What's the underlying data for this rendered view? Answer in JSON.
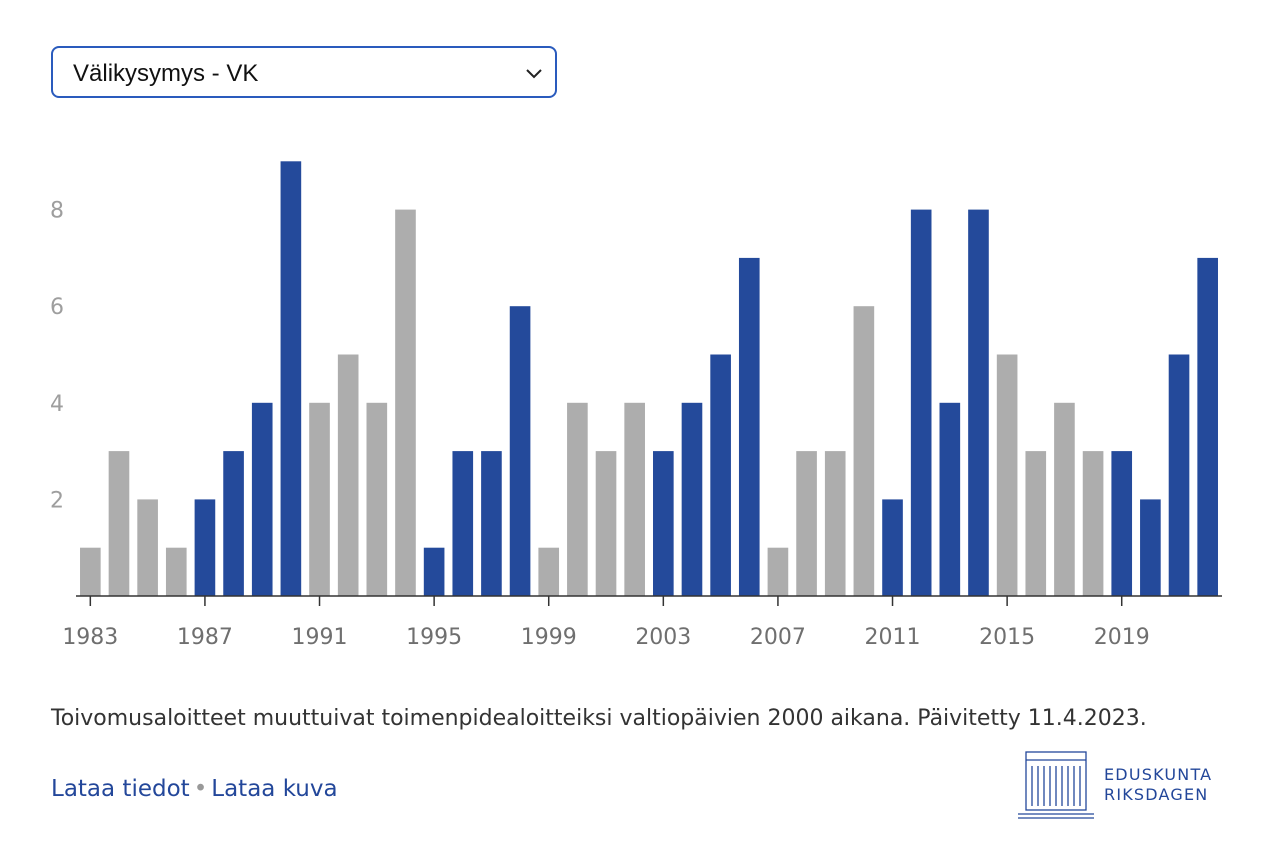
{
  "dropdown": {
    "selected": "Välikysymys - VK"
  },
  "chart_data": {
    "type": "bar",
    "categories": [
      "1983",
      "1984",
      "1985",
      "1986",
      "1987",
      "1988",
      "1989",
      "1990",
      "1991",
      "1992",
      "1993",
      "1994",
      "1995",
      "1996",
      "1997",
      "1998",
      "1999",
      "2000",
      "2001",
      "2002",
      "2003",
      "2004",
      "2005",
      "2006",
      "2007",
      "2008",
      "2009",
      "2010",
      "2011",
      "2012",
      "2013",
      "2014",
      "2015",
      "2016",
      "2017",
      "2018",
      "2019",
      "2020",
      "2021",
      "2022"
    ],
    "values": [
      1,
      3,
      2,
      1,
      2,
      3,
      4,
      9,
      4,
      5,
      4,
      8,
      1,
      3,
      3,
      6,
      1,
      4,
      3,
      4,
      3,
      4,
      5,
      7,
      1,
      3,
      3,
      6,
      2,
      8,
      4,
      8,
      5,
      3,
      4,
      3,
      3,
      2,
      5,
      7
    ],
    "highlighted": [
      false,
      false,
      false,
      false,
      true,
      true,
      true,
      true,
      false,
      false,
      false,
      false,
      true,
      true,
      true,
      true,
      false,
      false,
      false,
      false,
      true,
      true,
      true,
      true,
      false,
      false,
      false,
      false,
      true,
      true,
      true,
      true,
      false,
      false,
      false,
      false,
      true,
      true,
      true,
      true
    ],
    "xticks": [
      "1983",
      "1987",
      "1991",
      "1995",
      "1999",
      "2003",
      "2007",
      "2011",
      "2015",
      "2019"
    ],
    "yticks": [
      2,
      4,
      6,
      8
    ],
    "ylim": [
      0,
      9.5
    ],
    "colors": {
      "highlighted": "#244a9b",
      "other": "#adadad"
    },
    "title": "",
    "xlabel": "",
    "ylabel": ""
  },
  "note": "Toivomusaloitteet muuttuivat toimenpidealoitteiksi valtiopäivien 2000 aikana. Päivitetty 11.4.2023.",
  "links": {
    "data": "Lataa tiedot",
    "separator": "•",
    "image": "Lataa kuva"
  },
  "logo": {
    "line1": "EDUSKUNTA",
    "line2": "RIKSDAGEN"
  }
}
